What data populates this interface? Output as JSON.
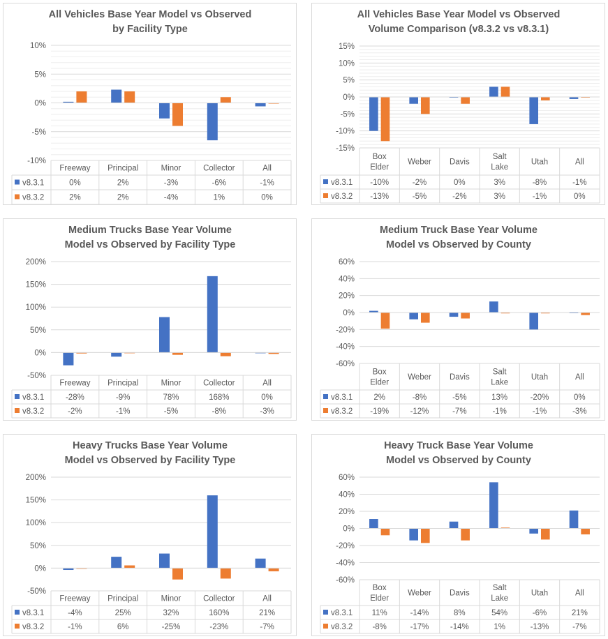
{
  "colors": {
    "v831": "#4472c4",
    "v832": "#ed7d31",
    "grid": "#d9d9d9",
    "text": "#595959"
  },
  "chart_data": [
    {
      "type": "bar",
      "title": [
        "All Vehicles Base Year Model vs Observed",
        "by Facility Type"
      ],
      "categories": [
        [
          "Freeway"
        ],
        [
          "Principal"
        ],
        [
          "Minor"
        ],
        [
          "Collector"
        ],
        [
          "All"
        ]
      ],
      "ylim": [
        -10,
        10
      ],
      "yticks": [
        -10,
        -5,
        0,
        5,
        10
      ],
      "ytick_labels": [
        "-10%",
        "-5%",
        "0%",
        "5%",
        "10%"
      ],
      "minor_step": 1,
      "series": [
        {
          "name": "v8.3.1",
          "values": [
            0.2,
            2.3,
            -2.7,
            -6.5,
            -0.6
          ],
          "labels": [
            "0%",
            "2%",
            "-3%",
            "-6%",
            "-1%"
          ]
        },
        {
          "name": "v8.3.2",
          "values": [
            2,
            2,
            -4,
            1,
            0
          ],
          "labels": [
            "2%",
            "2%",
            "-4%",
            "1%",
            "0%"
          ]
        }
      ]
    },
    {
      "type": "bar",
      "title": [
        "All Vehicles Base Year Model vs Observed",
        "Volume Comparison (v8.3.2 vs v8.3.1)"
      ],
      "categories": [
        [
          "Box",
          "Elder"
        ],
        [
          "Weber"
        ],
        [
          "Davis"
        ],
        [
          "Salt",
          "Lake"
        ],
        [
          "Utah"
        ],
        [
          "All"
        ]
      ],
      "ylim": [
        -15,
        15
      ],
      "yticks": [
        -15,
        -10,
        -5,
        0,
        5,
        10,
        15
      ],
      "ytick_labels": [
        "-15%",
        "-10%",
        "-5%",
        "0%",
        "5%",
        "10%",
        "15%"
      ],
      "minor_step": 1,
      "series": [
        {
          "name": "v8.3.1",
          "values": [
            -10,
            -2,
            0,
            3,
            -8,
            -0.6
          ],
          "labels": [
            "-10%",
            "-2%",
            "0%",
            "3%",
            "-8%",
            "-1%"
          ]
        },
        {
          "name": "v8.3.2",
          "values": [
            -13,
            -5,
            -2,
            3,
            -1,
            0
          ],
          "labels": [
            "-13%",
            "-5%",
            "-2%",
            "3%",
            "-1%",
            "0%"
          ]
        }
      ]
    },
    {
      "type": "bar",
      "title": [
        "Medium Trucks Base Year Volume",
        "Model vs Observed by Facility Type"
      ],
      "categories": [
        [
          "Freeway"
        ],
        [
          "Principal"
        ],
        [
          "Minor"
        ],
        [
          "Collector"
        ],
        [
          "All"
        ]
      ],
      "ylim": [
        -50,
        200
      ],
      "yticks": [
        -50,
        0,
        50,
        100,
        150,
        200
      ],
      "ytick_labels": [
        "-50%",
        "0%",
        "50%",
        "100%",
        "150%",
        "200%"
      ],
      "minor_step": 0,
      "series": [
        {
          "name": "v8.3.1",
          "values": [
            -28,
            -9,
            78,
            168,
            0
          ],
          "labels": [
            "-28%",
            "-9%",
            "78%",
            "168%",
            "0%"
          ]
        },
        {
          "name": "v8.3.2",
          "values": [
            -2,
            -1,
            -5,
            -8,
            -3
          ],
          "labels": [
            "-2%",
            "-1%",
            "-5%",
            "-8%",
            "-3%"
          ]
        }
      ]
    },
    {
      "type": "bar",
      "title": [
        "Medium Truck Base Year Volume",
        "Model vs Observed by County"
      ],
      "categories": [
        [
          "Box",
          "Elder"
        ],
        [
          "Weber"
        ],
        [
          "Davis"
        ],
        [
          "Salt",
          "Lake"
        ],
        [
          "Utah"
        ],
        [
          "All"
        ]
      ],
      "ylim": [
        -60,
        60
      ],
      "yticks": [
        -60,
        -40,
        -20,
        0,
        20,
        40,
        60
      ],
      "ytick_labels": [
        "-60%",
        "-40%",
        "-20%",
        "0%",
        "20%",
        "40%",
        "60%"
      ],
      "minor_step": 0,
      "series": [
        {
          "name": "v8.3.1",
          "values": [
            2,
            -8,
            -5,
            13,
            -20,
            0
          ],
          "labels": [
            "2%",
            "-8%",
            "-5%",
            "13%",
            "-20%",
            "0%"
          ]
        },
        {
          "name": "v8.3.2",
          "values": [
            -19,
            -12,
            -7,
            -1,
            -1,
            -3
          ],
          "labels": [
            "-19%",
            "-12%",
            "-7%",
            "-1%",
            "-1%",
            "-3%"
          ]
        }
      ]
    },
    {
      "type": "bar",
      "title": [
        "Heavy Trucks Base Year Volume",
        "Model vs Observed by Facility Type"
      ],
      "categories": [
        [
          "Freeway"
        ],
        [
          "Principal"
        ],
        [
          "Minor"
        ],
        [
          "Collector"
        ],
        [
          "All"
        ]
      ],
      "ylim": [
        -50,
        200
      ],
      "yticks": [
        -50,
        0,
        50,
        100,
        150,
        200
      ],
      "ytick_labels": [
        "-50%",
        "0%",
        "50%",
        "100%",
        "150%",
        "200%"
      ],
      "minor_step": 0,
      "series": [
        {
          "name": "v8.3.1",
          "values": [
            -4,
            25,
            32,
            160,
            21
          ],
          "labels": [
            "-4%",
            "25%",
            "32%",
            "160%",
            "21%"
          ]
        },
        {
          "name": "v8.3.2",
          "values": [
            -1,
            6,
            -25,
            -23,
            -7
          ],
          "labels": [
            "-1%",
            "6%",
            "-25%",
            "-23%",
            "-7%"
          ]
        }
      ]
    },
    {
      "type": "bar",
      "title": [
        "Heavy Truck Base Year Volume",
        "Model vs Observed by County"
      ],
      "categories": [
        [
          "Box",
          "Elder"
        ],
        [
          "Weber"
        ],
        [
          "Davis"
        ],
        [
          "Salt",
          "Lake"
        ],
        [
          "Utah"
        ],
        [
          "All"
        ]
      ],
      "ylim": [
        -60,
        60
      ],
      "yticks": [
        -60,
        -40,
        -20,
        0,
        20,
        40,
        60
      ],
      "ytick_labels": [
        "-60%",
        "-40%",
        "-20%",
        "0%",
        "20%",
        "40%",
        "60%"
      ],
      "minor_step": 0,
      "series": [
        {
          "name": "v8.3.1",
          "values": [
            11,
            -14,
            8,
            54,
            -6,
            21
          ],
          "labels": [
            "11%",
            "-14%",
            "8%",
            "54%",
            "-6%",
            "21%"
          ]
        },
        {
          "name": "v8.3.2",
          "values": [
            -8,
            -17,
            -14,
            1,
            -13,
            -7
          ],
          "labels": [
            "-8%",
            "-17%",
            "-14%",
            "1%",
            "-13%",
            "-7%"
          ]
        }
      ]
    }
  ]
}
